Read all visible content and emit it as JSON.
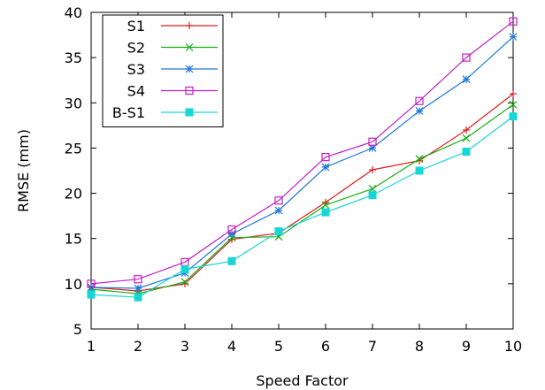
{
  "chart_data": {
    "type": "line",
    "title": "",
    "xlabel": "Speed Factor",
    "ylabel": "RMSE (mm)",
    "xlim": [
      1,
      10
    ],
    "ylim": [
      5,
      40
    ],
    "xticks": [
      1,
      2,
      3,
      4,
      5,
      6,
      7,
      8,
      9,
      10
    ],
    "yticks": [
      5,
      10,
      15,
      20,
      25,
      30,
      35,
      40
    ],
    "grid": false,
    "legend_position": "top-left",
    "x": [
      1,
      2,
      3,
      4,
      5,
      6,
      7,
      8,
      9,
      10
    ],
    "series": [
      {
        "name": "S1",
        "color": "#e41a1c",
        "marker": "plus",
        "values": [
          9.6,
          9.2,
          10.0,
          14.9,
          15.6,
          19.0,
          22.6,
          23.6,
          27.0,
          31.0
        ]
      },
      {
        "name": "S2",
        "color": "#16b016",
        "marker": "x",
        "values": [
          9.4,
          8.9,
          10.2,
          15.1,
          15.2,
          18.7,
          20.5,
          23.8,
          26.1,
          29.8
        ]
      },
      {
        "name": "S3",
        "color": "#1f78d4",
        "marker": "star",
        "values": [
          9.6,
          9.5,
          11.2,
          15.5,
          18.1,
          22.9,
          25.0,
          29.1,
          32.6,
          37.3
        ]
      },
      {
        "name": "S4",
        "color": "#c41ec4",
        "marker": "open-square",
        "values": [
          10.0,
          10.5,
          12.4,
          16.0,
          19.2,
          24.0,
          25.7,
          30.2,
          35.0,
          39.0
        ]
      },
      {
        "name": "B-S1",
        "color": "#17d6d6",
        "marker": "filled-square",
        "values": [
          8.8,
          8.5,
          11.6,
          12.5,
          15.8,
          17.9,
          19.8,
          22.5,
          24.6,
          28.5
        ]
      }
    ]
  }
}
